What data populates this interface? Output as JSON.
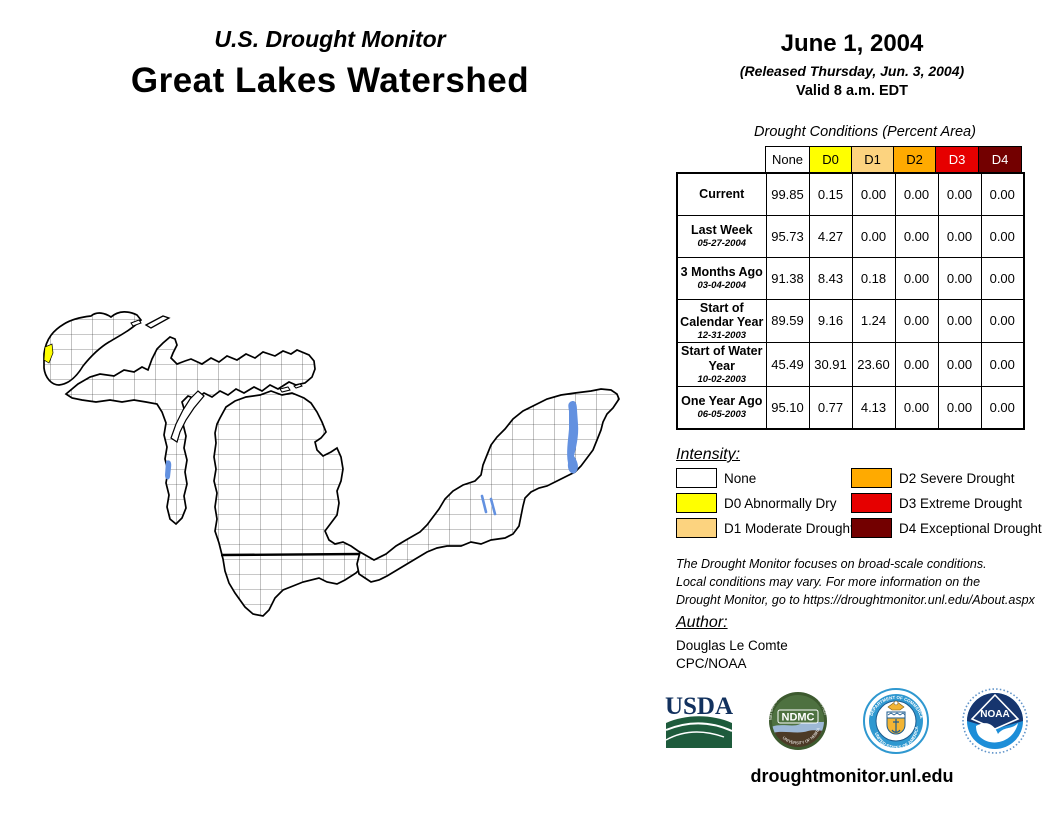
{
  "header": {
    "kicker": "U.S. Drought Monitor",
    "title": "Great Lakes Watershed"
  },
  "date_block": {
    "date": "June 1, 2004",
    "released": "(Released Thursday, Jun. 3, 2004)",
    "valid": "Valid 8 a.m. EDT"
  },
  "table": {
    "title": "Drought Conditions (Percent Area)",
    "columns": [
      {
        "key": "none",
        "label": "None"
      },
      {
        "key": "d0",
        "label": "D0"
      },
      {
        "key": "d1",
        "label": "D1"
      },
      {
        "key": "d2",
        "label": "D2"
      },
      {
        "key": "d3",
        "label": "D3"
      },
      {
        "key": "d4",
        "label": "D4"
      }
    ],
    "rows": [
      {
        "label": "Current",
        "sublabel": "",
        "values": [
          "99.85",
          "0.15",
          "0.00",
          "0.00",
          "0.00",
          "0.00"
        ]
      },
      {
        "label": "Last Week",
        "sublabel": "05-27-2004",
        "values": [
          "95.73",
          "4.27",
          "0.00",
          "0.00",
          "0.00",
          "0.00"
        ]
      },
      {
        "label": "3 Months Ago",
        "sublabel": "03-04-2004",
        "values": [
          "91.38",
          "8.43",
          "0.18",
          "0.00",
          "0.00",
          "0.00"
        ]
      },
      {
        "label": "Start of Calendar Year",
        "sublabel": "12-31-2003",
        "values": [
          "89.59",
          "9.16",
          "1.24",
          "0.00",
          "0.00",
          "0.00"
        ]
      },
      {
        "label": "Start of Water Year",
        "sublabel": "10-02-2003",
        "values": [
          "45.49",
          "30.91",
          "23.60",
          "0.00",
          "0.00",
          "0.00"
        ]
      },
      {
        "label": "One Year Ago",
        "sublabel": "06-05-2003",
        "values": [
          "95.10",
          "0.77",
          "4.13",
          "0.00",
          "0.00",
          "0.00"
        ]
      }
    ]
  },
  "legend": {
    "heading": "Intensity:",
    "items": [
      {
        "key": "none",
        "label": "None"
      },
      {
        "key": "d0",
        "label": "D0 Abnormally Dry"
      },
      {
        "key": "d1",
        "label": "D1 Moderate Drought"
      },
      {
        "key": "d2",
        "label": "D2 Severe Drought"
      },
      {
        "key": "d3",
        "label": "D3 Extreme Drought"
      },
      {
        "key": "d4",
        "label": "D4 Exceptional Drought"
      }
    ]
  },
  "colors": {
    "none": "#FFFFFF",
    "d0": "#FFFF00",
    "d1": "#FCD37F",
    "d2": "#FFAA00",
    "d3": "#E60000",
    "d4": "#730000",
    "water": "#6391E0"
  },
  "disclaimer": {
    "lines": [
      "The Drought Monitor focuses on broad-scale conditions.",
      "Local conditions may vary. For more information on the",
      "Drought Monitor, go to https://droughtmonitor.unl.edu/About.aspx"
    ]
  },
  "author": {
    "heading": "Author:",
    "name": "Douglas Le Comte",
    "org": "CPC/NOAA"
  },
  "logos": {
    "usda_label": "USDA",
    "ndmc_label": "NDMC",
    "ndmc_ring_top": "NATIONAL DROUGHT MITIGATION CENTER",
    "ndmc_ring_bottom": "UNIVERSITY OF NEBRASKA",
    "doc_ring_top": "DEPARTMENT OF COMMERCE",
    "doc_ring_bottom": "UNITED STATES OF AMERICA",
    "noaa_label": "NOAA"
  },
  "footer": {
    "url": "droughtmonitor.unl.edu"
  }
}
